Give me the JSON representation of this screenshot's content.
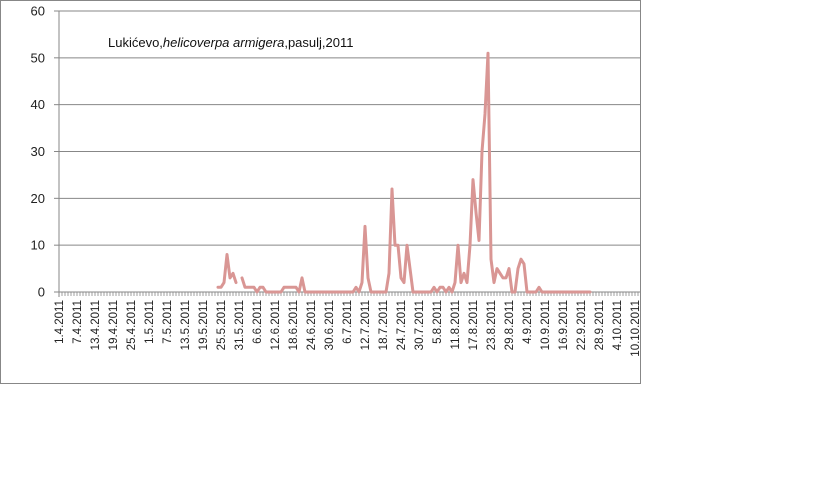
{
  "chart_data": {
    "type": "line",
    "title_parts": [
      "Lukićevo,",
      "helicoverpa armigera",
      ",pasulj,2011"
    ],
    "ylim": [
      0,
      60
    ],
    "y_ticks": [
      "0",
      "10",
      "20",
      "30",
      "40",
      "50",
      "60"
    ],
    "x_start": "2011-04-01",
    "x_tick_step_days": 6,
    "x_ticks": [
      "1.4.2011",
      "7.4.2011",
      "13.4.2011",
      "19.4.2011",
      "25.4.2011",
      "1.5.2011",
      "7.5.2011",
      "13.5.2011",
      "19.5.2011",
      "25.5.2011",
      "31.5.2011",
      "6.6.2011",
      "12.6.2011",
      "18.6.2011",
      "24.6.2011",
      "30.6.2011",
      "6.7.2011",
      "12.7.2011",
      "18.7.2011",
      "24.7.2011",
      "30.7.2011",
      "5.8.2011",
      "11.8.2011",
      "17.8.2011",
      "23.8.2011",
      "29.8.2011",
      "4.9.2011",
      "10.9.2011",
      "16.9.2011",
      "22.9.2011",
      "28.9.2011",
      "4.10.2011",
      "10.10.2011"
    ],
    "grid": true,
    "line_color": "#d99694",
    "segments": [
      [
        [
          "2011-05-24",
          1
        ],
        [
          "2011-05-25",
          1
        ],
        [
          "2011-05-26",
          2
        ],
        [
          "2011-05-27",
          8
        ],
        [
          "2011-05-28",
          3
        ],
        [
          "2011-05-29",
          4
        ],
        [
          "2011-05-30",
          2
        ]
      ],
      [
        [
          "2011-06-01",
          3
        ],
        [
          "2011-06-02",
          1
        ],
        [
          "2011-06-03",
          1
        ],
        [
          "2011-06-04",
          1
        ],
        [
          "2011-06-05",
          1
        ],
        [
          "2011-06-06",
          0
        ],
        [
          "2011-06-07",
          1
        ],
        [
          "2011-06-08",
          1
        ],
        [
          "2011-06-09",
          0
        ],
        [
          "2011-06-10",
          0
        ],
        [
          "2011-06-11",
          0
        ],
        [
          "2011-06-12",
          0
        ],
        [
          "2011-06-13",
          0
        ],
        [
          "2011-06-14",
          0
        ],
        [
          "2011-06-15",
          1
        ],
        [
          "2011-06-16",
          1
        ],
        [
          "2011-06-17",
          1
        ],
        [
          "2011-06-18",
          1
        ],
        [
          "2011-06-19",
          1
        ],
        [
          "2011-06-20",
          0
        ],
        [
          "2011-06-21",
          3
        ],
        [
          "2011-06-22",
          0
        ],
        [
          "2011-06-23",
          0
        ],
        [
          "2011-06-24",
          0
        ],
        [
          "2011-06-25",
          0
        ],
        [
          "2011-06-26",
          0
        ],
        [
          "2011-06-27",
          0
        ],
        [
          "2011-06-28",
          0
        ],
        [
          "2011-06-29",
          0
        ],
        [
          "2011-06-30",
          0
        ],
        [
          "2011-07-01",
          0
        ],
        [
          "2011-07-02",
          0
        ],
        [
          "2011-07-03",
          0
        ],
        [
          "2011-07-04",
          0
        ],
        [
          "2011-07-05",
          0
        ],
        [
          "2011-07-06",
          0
        ],
        [
          "2011-07-07",
          0
        ],
        [
          "2011-07-08",
          0
        ],
        [
          "2011-07-09",
          1
        ],
        [
          "2011-07-10",
          0
        ],
        [
          "2011-07-11",
          2
        ],
        [
          "2011-07-12",
          14
        ],
        [
          "2011-07-13",
          3
        ],
        [
          "2011-07-14",
          0
        ],
        [
          "2011-07-15",
          0
        ],
        [
          "2011-07-16",
          0
        ],
        [
          "2011-07-17",
          0
        ],
        [
          "2011-07-18",
          0
        ],
        [
          "2011-07-19",
          0
        ],
        [
          "2011-07-20",
          4
        ],
        [
          "2011-07-21",
          22
        ],
        [
          "2011-07-22",
          10
        ],
        [
          "2011-07-23",
          10
        ],
        [
          "2011-07-24",
          3
        ],
        [
          "2011-07-25",
          2
        ],
        [
          "2011-07-26",
          10
        ],
        [
          "2011-07-27",
          5
        ],
        [
          "2011-07-28",
          0
        ],
        [
          "2011-07-29",
          0
        ],
        [
          "2011-07-30",
          0
        ],
        [
          "2011-07-31",
          0
        ],
        [
          "2011-08-01",
          0
        ],
        [
          "2011-08-02",
          0
        ],
        [
          "2011-08-03",
          0
        ],
        [
          "2011-08-04",
          1
        ],
        [
          "2011-08-05",
          0
        ],
        [
          "2011-08-06",
          1
        ],
        [
          "2011-08-07",
          1
        ],
        [
          "2011-08-08",
          0
        ],
        [
          "2011-08-09",
          1
        ],
        [
          "2011-08-10",
          0
        ],
        [
          "2011-08-11",
          2
        ],
        [
          "2011-08-12",
          10
        ],
        [
          "2011-08-13",
          2
        ],
        [
          "2011-08-14",
          4
        ],
        [
          "2011-08-15",
          2
        ],
        [
          "2011-08-16",
          10
        ],
        [
          "2011-08-17",
          24
        ],
        [
          "2011-08-18",
          17
        ],
        [
          "2011-08-19",
          11
        ],
        [
          "2011-08-20",
          30
        ],
        [
          "2011-08-21",
          38
        ],
        [
          "2011-08-22",
          51
        ],
        [
          "2011-08-23",
          7
        ],
        [
          "2011-08-24",
          2
        ],
        [
          "2011-08-25",
          5
        ],
        [
          "2011-08-26",
          4
        ],
        [
          "2011-08-27",
          3
        ],
        [
          "2011-08-28",
          3
        ],
        [
          "2011-08-29",
          5
        ],
        [
          "2011-08-30",
          0
        ],
        [
          "2011-08-31",
          0
        ],
        [
          "2011-09-01",
          5
        ],
        [
          "2011-09-02",
          7
        ],
        [
          "2011-09-03",
          6
        ],
        [
          "2011-09-04",
          0
        ],
        [
          "2011-09-05",
          0
        ],
        [
          "2011-09-06",
          0
        ],
        [
          "2011-09-07",
          0
        ],
        [
          "2011-09-08",
          1
        ],
        [
          "2011-09-09",
          0
        ],
        [
          "2011-09-10",
          0
        ],
        [
          "2011-09-11",
          0
        ],
        [
          "2011-09-12",
          0
        ],
        [
          "2011-09-13",
          0
        ],
        [
          "2011-09-14",
          0
        ],
        [
          "2011-09-15",
          0
        ],
        [
          "2011-09-16",
          0
        ],
        [
          "2011-09-17",
          0
        ],
        [
          "2011-09-18",
          0
        ],
        [
          "2011-09-19",
          0
        ],
        [
          "2011-09-20",
          0
        ],
        [
          "2011-09-21",
          0
        ],
        [
          "2011-09-22",
          0
        ],
        [
          "2011-09-23",
          0
        ],
        [
          "2011-09-24",
          0
        ],
        [
          "2011-09-25",
          0
        ]
      ]
    ]
  }
}
